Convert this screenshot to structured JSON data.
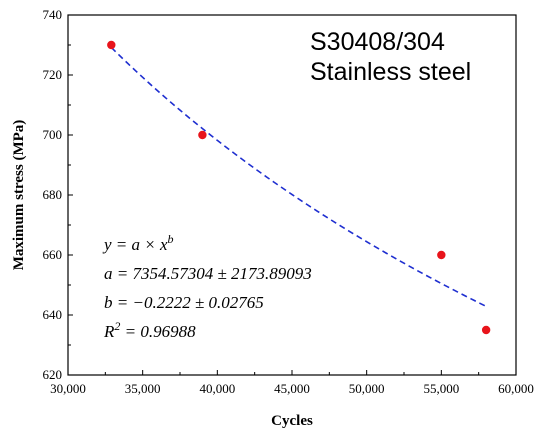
{
  "chart_data": {
    "type": "scatter",
    "title_lines": [
      "S30408/304",
      "Stainless steel"
    ],
    "xlabel": "Cycles",
    "ylabel": "Maximum stress (MPa)",
    "xlim": [
      30000,
      60000
    ],
    "ylim": [
      620,
      740
    ],
    "x_ticks": [
      30000,
      35000,
      40000,
      45000,
      50000,
      55000,
      60000
    ],
    "x_tick_labels": [
      "30,000",
      "35,000",
      "40,000",
      "45,000",
      "50,000",
      "55,000",
      "60,000"
    ],
    "y_ticks": [
      620,
      640,
      660,
      680,
      700,
      720,
      740
    ],
    "y_tick_labels": [
      "620",
      "640",
      "660",
      "680",
      "700",
      "720",
      "740"
    ],
    "grid": false,
    "points": [
      {
        "x": 32900,
        "y": 730
      },
      {
        "x": 39000,
        "y": 700
      },
      {
        "x": 55000,
        "y": 660
      },
      {
        "x": 58000,
        "y": 635
      }
    ],
    "fit": {
      "model": "power",
      "a": 7354.57304,
      "b": -0.2222,
      "x_range": [
        32900,
        58000
      ]
    },
    "annotations": [
      "y = a × x",
      "b",
      "a = 7354.57304 ± 2173.89093",
      "b = −0.2222 ± 0.02765",
      "R",
      "2",
      " = 0.96988"
    ],
    "colors": {
      "points": "#e8141b",
      "fit_line": "#1f2fd0",
      "axes": "#000000"
    }
  }
}
